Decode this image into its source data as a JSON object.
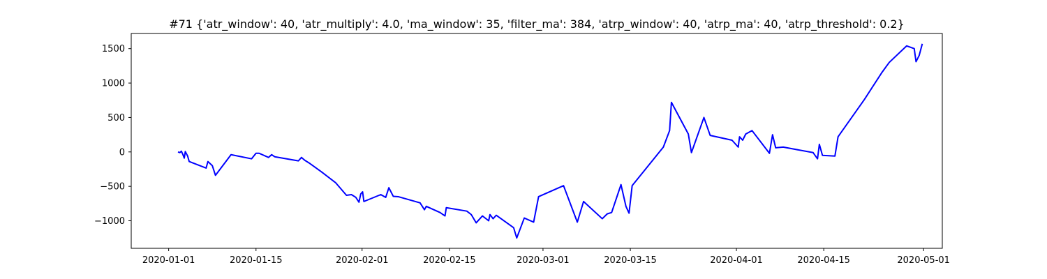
{
  "chart_data": {
    "type": "line",
    "title": "#71 {'atr_window': 40, 'atr_multiply': 4.0, 'ma_window': 35, 'filter_ma': 384, 'atrp_window': 40, 'atrp_ma': 40, 'atrp_threshold': 0.2}",
    "xlabel": "",
    "ylabel": "",
    "xlim": [
      "2019-12-26",
      "2020-05-04"
    ],
    "ylim": [
      -1400,
      1720
    ],
    "grid": false,
    "legend": "none",
    "x_ticks": [
      {
        "value": "2020-01-01",
        "label": "2020-01-01"
      },
      {
        "value": "2020-01-15",
        "label": "2020-01-15"
      },
      {
        "value": "2020-02-01",
        "label": "2020-02-01"
      },
      {
        "value": "2020-02-15",
        "label": "2020-02-15"
      },
      {
        "value": "2020-03-01",
        "label": "2020-03-01"
      },
      {
        "value": "2020-03-15",
        "label": "2020-03-15"
      },
      {
        "value": "2020-04-01",
        "label": "2020-04-01"
      },
      {
        "value": "2020-04-15",
        "label": "2020-04-15"
      },
      {
        "value": "2020-05-01",
        "label": "2020-05-01"
      }
    ],
    "y_ticks": [
      {
        "value": -1000,
        "label": "−1000"
      },
      {
        "value": -500,
        "label": "−500"
      },
      {
        "value": 0,
        "label": "0"
      },
      {
        "value": 500,
        "label": "500"
      },
      {
        "value": 1000,
        "label": "1000"
      },
      {
        "value": 1500,
        "label": "1500"
      }
    ],
    "series": [
      {
        "color": "#0000ff",
        "points": [
          [
            "2020-01-02 12:00",
            0
          ],
          [
            "2020-01-02 19:00",
            -10
          ],
          [
            "2020-01-03 01:00",
            10
          ],
          [
            "2020-01-03 07:00",
            -40
          ],
          [
            "2020-01-03 12:00",
            -90
          ],
          [
            "2020-01-03 16:00",
            5
          ],
          [
            "2020-01-04 01:00",
            -60
          ],
          [
            "2020-01-04 07:00",
            -140
          ],
          [
            "2020-01-07 00:00",
            -235
          ],
          [
            "2020-01-07 07:00",
            -140
          ],
          [
            "2020-01-08 00:00",
            -200
          ],
          [
            "2020-01-08 12:00",
            -340
          ],
          [
            "2020-01-11 00:00",
            -40
          ],
          [
            "2020-01-14 07:00",
            -100
          ],
          [
            "2020-01-15 00:00",
            -20
          ],
          [
            "2020-01-15 12:00",
            -20
          ],
          [
            "2020-01-17 00:00",
            -80
          ],
          [
            "2020-01-17 12:00",
            -40
          ],
          [
            "2020-01-18 00:00",
            -70
          ],
          [
            "2020-01-21 19:00",
            -130
          ],
          [
            "2020-01-22 07:00",
            -80
          ],
          [
            "2020-01-22 19:00",
            -120
          ],
          [
            "2020-01-23 12:00",
            -160
          ],
          [
            "2020-01-25 12:00",
            -290
          ],
          [
            "2020-01-25 19:00",
            -310
          ],
          [
            "2020-01-27 19:00",
            -450
          ],
          [
            "2020-01-29 12:00",
            -630
          ],
          [
            "2020-01-30 07:00",
            -620
          ],
          [
            "2020-01-31 00:00",
            -660
          ],
          [
            "2020-01-31 12:00",
            -730
          ],
          [
            "2020-01-31 19:00",
            -610
          ],
          [
            "2020-02-01 02:00",
            -580
          ],
          [
            "2020-02-01 07:00",
            -720
          ],
          [
            "2020-02-04 00:00",
            -620
          ],
          [
            "2020-02-04 19:00",
            -660
          ],
          [
            "2020-02-05 07:00",
            -520
          ],
          [
            "2020-02-06 00:00",
            -645
          ],
          [
            "2020-02-06 19:00",
            -650
          ],
          [
            "2020-02-10 07:00",
            -740
          ],
          [
            "2020-02-11 00:00",
            -840
          ],
          [
            "2020-02-11 07:00",
            -790
          ],
          [
            "2020-02-12 12:00",
            -840
          ],
          [
            "2020-02-13 12:00",
            -880
          ],
          [
            "2020-02-14 07:00",
            -930
          ],
          [
            "2020-02-14 12:00",
            -810
          ],
          [
            "2020-02-17 19:00",
            -860
          ],
          [
            "2020-02-18 12:00",
            -910
          ],
          [
            "2020-02-19 07:00",
            -1030
          ],
          [
            "2020-02-20 07:00",
            -930
          ],
          [
            "2020-02-21 07:00",
            -1000
          ],
          [
            "2020-02-21 12:00",
            -910
          ],
          [
            "2020-02-22 00:00",
            -970
          ],
          [
            "2020-02-22 12:00",
            -920
          ],
          [
            "2020-02-25 07:00",
            -1100
          ],
          [
            "2020-02-25 19:00",
            -1250
          ],
          [
            "2020-02-27 00:00",
            -960
          ],
          [
            "2020-02-28 12:00",
            -1020
          ],
          [
            "2020-02-29 07:00",
            -650
          ],
          [
            "2020-03-04 07:00",
            -490
          ],
          [
            "2020-03-06 12:00",
            -1020
          ],
          [
            "2020-03-07 12:00",
            -720
          ],
          [
            "2020-03-10 12:00",
            -970
          ],
          [
            "2020-03-11 07:00",
            -900
          ],
          [
            "2020-03-12 00:00",
            -880
          ],
          [
            "2020-03-13 12:00",
            -475
          ],
          [
            "2020-03-14 07:00",
            -790
          ],
          [
            "2020-03-14 19:00",
            -890
          ],
          [
            "2020-03-15 07:00",
            -490
          ],
          [
            "2020-03-20 07:00",
            70
          ],
          [
            "2020-03-21 07:00",
            310
          ],
          [
            "2020-03-21 14:00",
            720
          ],
          [
            "2020-03-24 07:00",
            260
          ],
          [
            "2020-03-24 19:00",
            -10
          ],
          [
            "2020-03-26 19:00",
            500
          ],
          [
            "2020-03-27 19:00",
            240
          ],
          [
            "2020-03-31 07:00",
            170
          ],
          [
            "2020-04-01 07:00",
            70
          ],
          [
            "2020-04-01 12:00",
            220
          ],
          [
            "2020-04-02 00:00",
            170
          ],
          [
            "2020-04-02 12:00",
            260
          ],
          [
            "2020-04-03 12:00",
            310
          ],
          [
            "2020-04-06 07:00",
            -20
          ],
          [
            "2020-04-06 19:00",
            250
          ],
          [
            "2020-04-07 07:00",
            60
          ],
          [
            "2020-04-08 12:00",
            70
          ],
          [
            "2020-04-13 07:00",
            -10
          ],
          [
            "2020-04-14 00:00",
            -100
          ],
          [
            "2020-04-14 07:00",
            110
          ],
          [
            "2020-04-14 19:00",
            -50
          ],
          [
            "2020-04-16 19:00",
            -60
          ],
          [
            "2020-04-17 07:00",
            220
          ],
          [
            "2020-04-21 12:00",
            760
          ],
          [
            "2020-04-24 07:00",
            1150
          ],
          [
            "2020-04-25 12:00",
            1300
          ],
          [
            "2020-04-28 07:00",
            1540
          ],
          [
            "2020-04-29 12:00",
            1500
          ],
          [
            "2020-04-29 19:00",
            1310
          ],
          [
            "2020-04-30 07:00",
            1400
          ],
          [
            "2020-04-30 19:00",
            1570
          ]
        ]
      }
    ]
  }
}
